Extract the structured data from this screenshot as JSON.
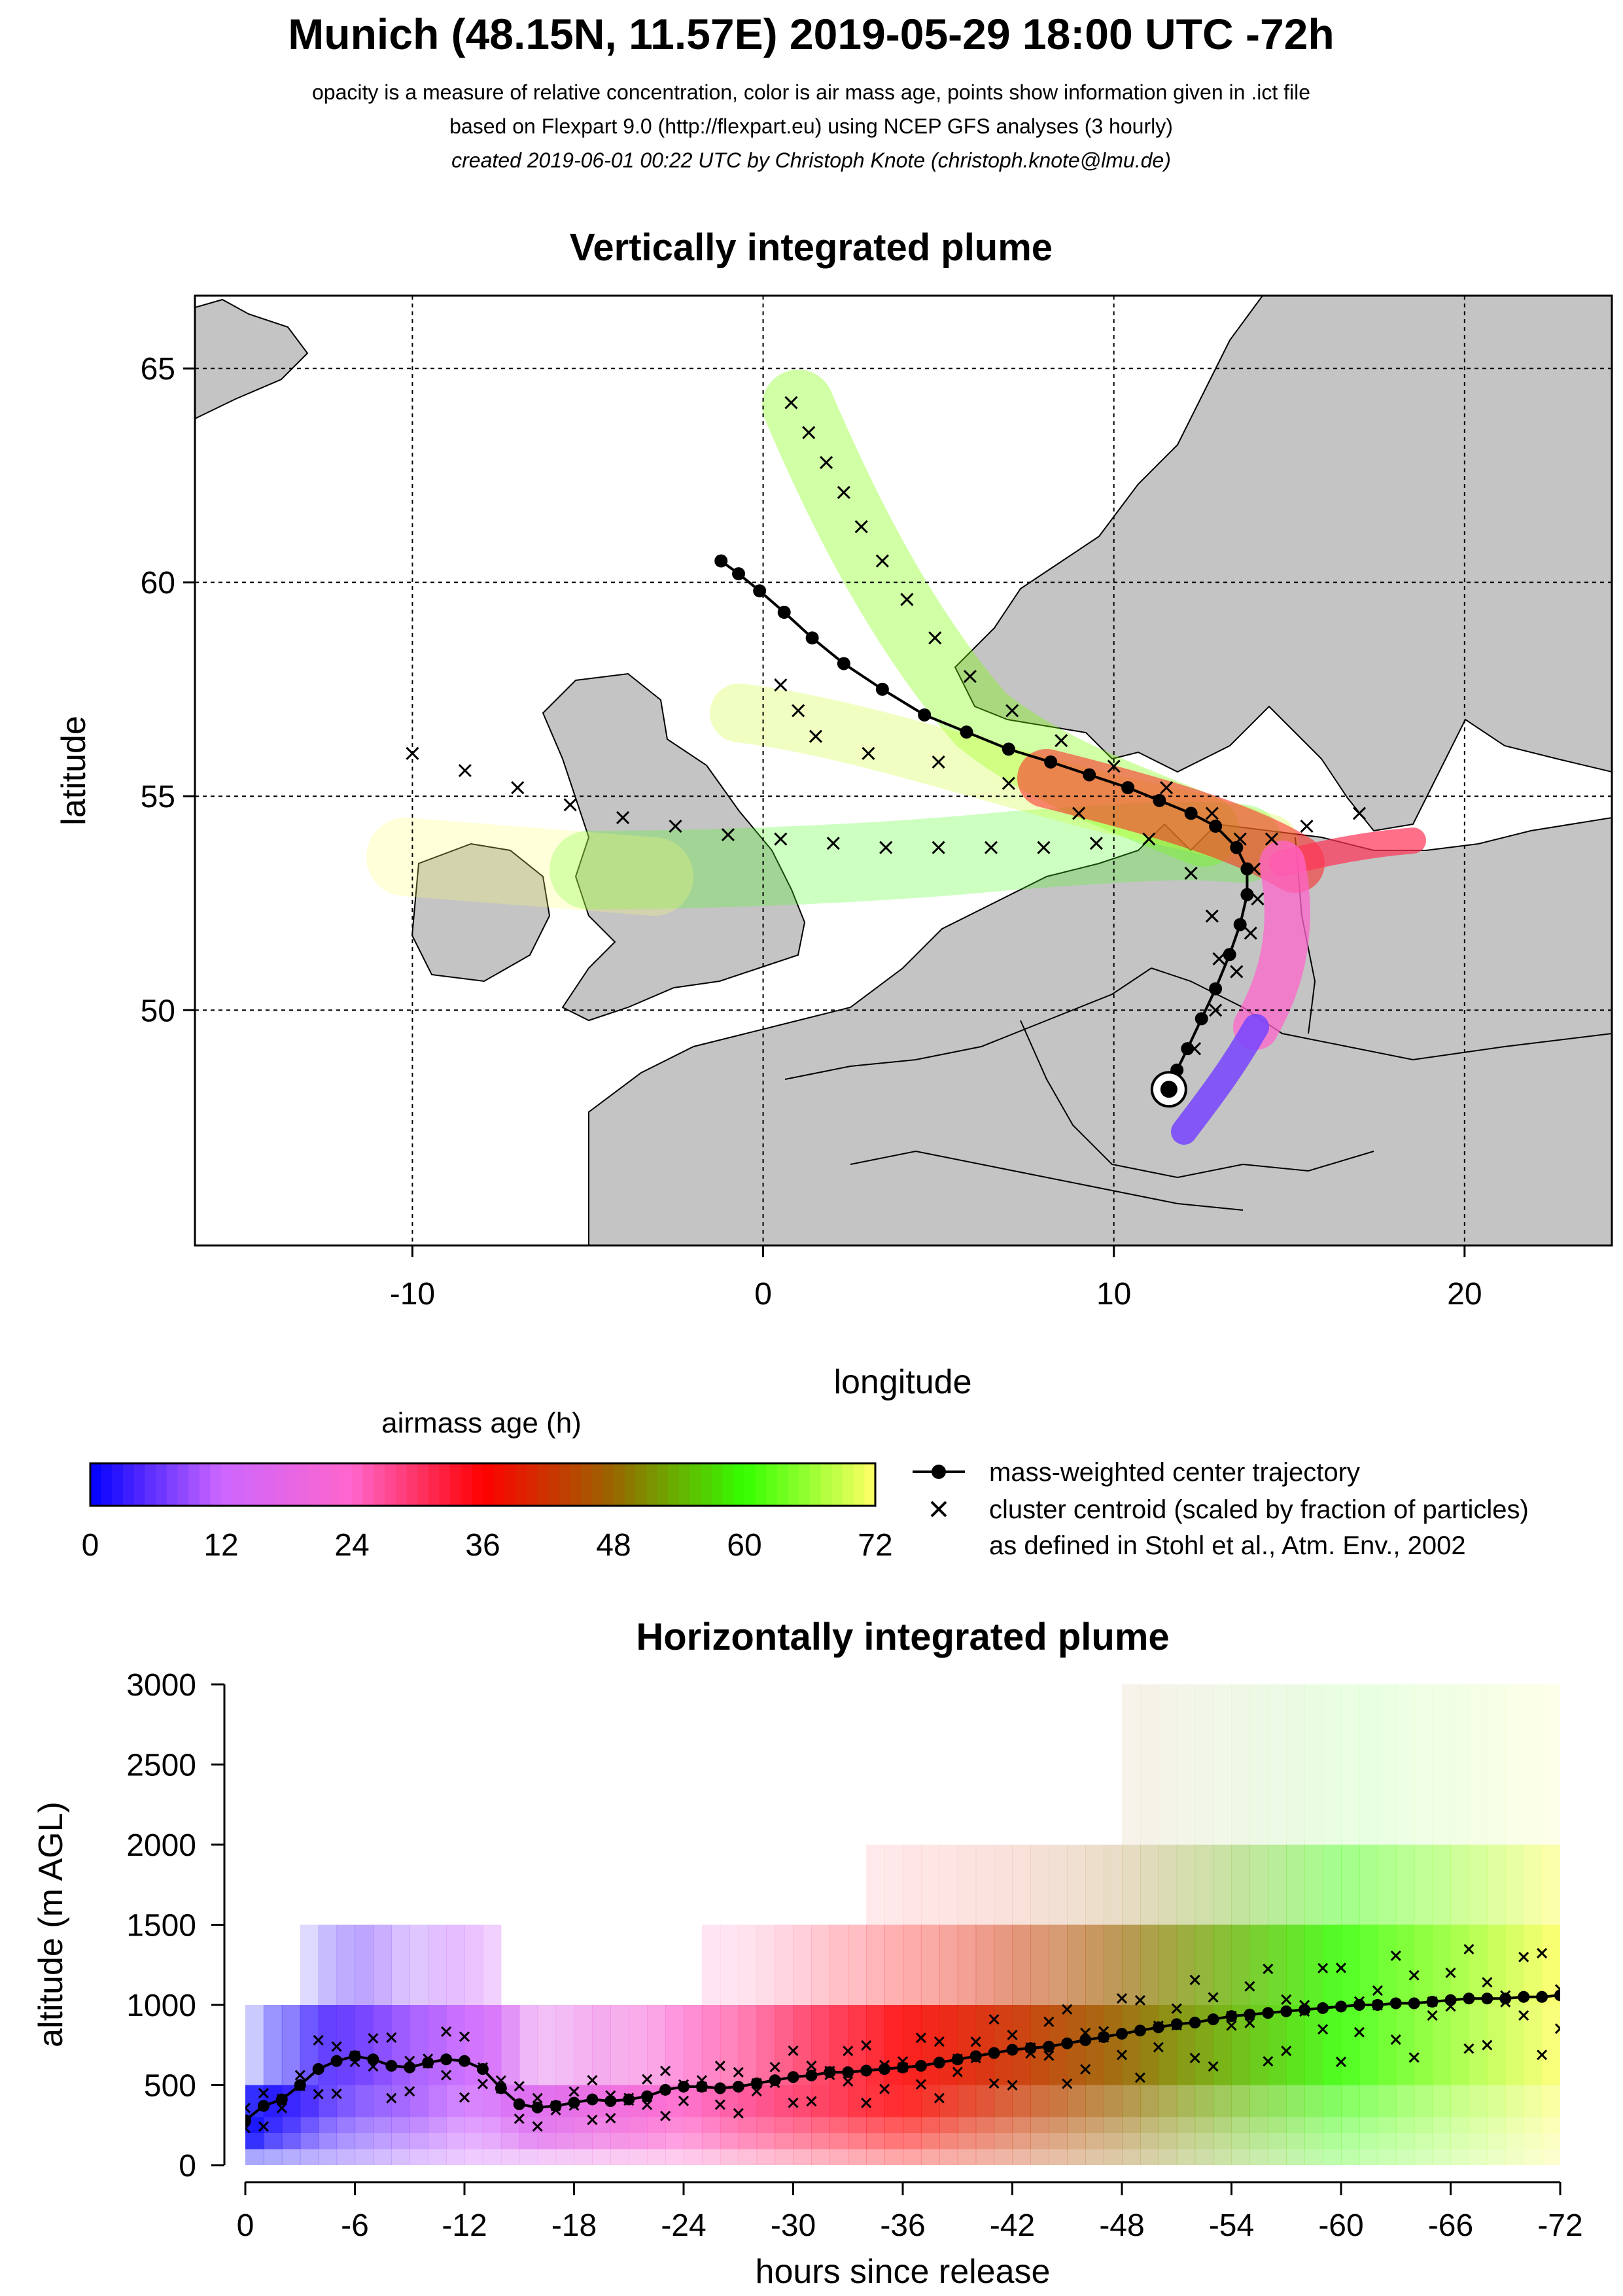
{
  "header": {
    "title": "Munich (48.15N, 11.57E) 2019-05-29 18:00 UTC -72h",
    "line1": "opacity is a measure of relative concentration, color is air mass age, points show information given in .ict file",
    "line2": "based on Flexpart 9.0 (http://flexpart.eu) using NCEP GFS analyses (3 hourly)",
    "line3": "created 2019-06-01 00:22 UTC by Christoph Knote (christoph.knote@lmu.de)"
  },
  "colors": {
    "age_stops": [
      "#0000ff",
      "#cc66ff",
      "#ff66cc",
      "#ff0000",
      "#996600",
      "#33ff00",
      "#ffff66"
    ],
    "land": "#c8c8c8",
    "grid": "#000000"
  },
  "chart_data": [
    {
      "type": "scatter",
      "title": "Vertically integrated plume",
      "xlabel": "longitude",
      "ylabel": "latitude",
      "xlim": [
        -16.2,
        24.2
      ],
      "ylim": [
        44.5,
        66.7
      ],
      "xticks": [
        -10,
        0,
        10,
        20
      ],
      "yticks": [
        50,
        55,
        60,
        65
      ],
      "grid": true,
      "release_point": {
        "lon": 11.57,
        "lat": 48.15
      },
      "series": [
        {
          "name": "mass-weighted center trajectory",
          "marker": "dot-line",
          "points": [
            [
              11.57,
              48.15
            ],
            [
              11.8,
              48.6
            ],
            [
              12.1,
              49.1
            ],
            [
              12.5,
              49.8
            ],
            [
              12.9,
              50.5
            ],
            [
              13.3,
              51.3
            ],
            [
              13.6,
              52.0
            ],
            [
              13.8,
              52.7
            ],
            [
              13.8,
              53.3
            ],
            [
              13.5,
              53.8
            ],
            [
              12.9,
              54.3
            ],
            [
              12.2,
              54.6
            ],
            [
              11.3,
              54.9
            ],
            [
              10.4,
              55.2
            ],
            [
              9.3,
              55.5
            ],
            [
              8.2,
              55.8
            ],
            [
              7.0,
              56.1
            ],
            [
              5.8,
              56.5
            ],
            [
              4.6,
              56.9
            ],
            [
              3.4,
              57.5
            ],
            [
              2.3,
              58.1
            ],
            [
              1.4,
              58.7
            ],
            [
              0.6,
              59.3
            ],
            [
              -0.1,
              59.8
            ],
            [
              -0.7,
              60.2
            ],
            [
              -1.2,
              60.5
            ]
          ]
        },
        {
          "name": "cluster centroid (scaled by fraction of particles)",
          "marker": "x",
          "points": [
            [
              0.8,
              64.2
            ],
            [
              1.3,
              63.5
            ],
            [
              1.8,
              62.8
            ],
            [
              2.3,
              62.1
            ],
            [
              2.8,
              61.3
            ],
            [
              3.4,
              60.5
            ],
            [
              4.1,
              59.6
            ],
            [
              4.9,
              58.7
            ],
            [
              5.9,
              57.8
            ],
            [
              7.1,
              57.0
            ],
            [
              8.5,
              56.3
            ],
            [
              10.0,
              55.7
            ],
            [
              11.5,
              55.2
            ],
            [
              12.8,
              54.6
            ],
            [
              13.6,
              54.0
            ],
            [
              14.0,
              53.3
            ],
            [
              14.1,
              52.6
            ],
            [
              13.9,
              51.8
            ],
            [
              13.5,
              50.9
            ],
            [
              12.9,
              50.0
            ],
            [
              12.3,
              49.1
            ],
            [
              -10.0,
              56.0
            ],
            [
              -8.5,
              55.6
            ],
            [
              -7.0,
              55.2
            ],
            [
              -5.5,
              54.8
            ],
            [
              -4.0,
              54.5
            ],
            [
              -2.5,
              54.3
            ],
            [
              -1.0,
              54.1
            ],
            [
              0.5,
              54.0
            ],
            [
              2.0,
              53.9
            ],
            [
              3.5,
              53.8
            ],
            [
              5.0,
              53.8
            ],
            [
              6.5,
              53.8
            ],
            [
              8.0,
              53.8
            ],
            [
              9.5,
              53.9
            ],
            [
              0.5,
              57.6
            ],
            [
              1.0,
              57.0
            ],
            [
              1.5,
              56.4
            ],
            [
              3.0,
              56.0
            ],
            [
              5.0,
              55.8
            ],
            [
              7.0,
              55.3
            ],
            [
              9.0,
              54.6
            ],
            [
              11.0,
              54.0
            ],
            [
              12.2,
              53.2
            ],
            [
              12.8,
              52.2
            ],
            [
              13.0,
              51.2
            ],
            [
              14.5,
              54.0
            ],
            [
              15.5,
              54.3
            ],
            [
              17.0,
              54.6
            ]
          ]
        }
      ]
    },
    {
      "type": "scatter",
      "title": "Horizontally integrated plume",
      "xlabel": "hours since release",
      "ylabel": "altitude (m AGL)",
      "xlim": [
        0,
        -72
      ],
      "ylim": [
        0,
        3000
      ],
      "xticks": [
        0,
        -6,
        -12,
        -18,
        -24,
        -30,
        -36,
        -42,
        -48,
        -54,
        -60,
        -66,
        -72
      ],
      "yticks": [
        0,
        500,
        1000,
        1500,
        2000,
        2500,
        3000
      ],
      "center_trajectory": {
        "hours": [
          0,
          -1,
          -2,
          -3,
          -4,
          -5,
          -6,
          -7,
          -8,
          -9,
          -10,
          -11,
          -12,
          -13,
          -14,
          -15,
          -16,
          -17,
          -18,
          -19,
          -20,
          -21,
          -22,
          -23,
          -24,
          -25,
          -26,
          -27,
          -28,
          -29,
          -30,
          -31,
          -32,
          -33,
          -34,
          -35,
          -36,
          -37,
          -38,
          -39,
          -40,
          -41,
          -42,
          -43,
          -44,
          -45,
          -46,
          -47,
          -48,
          -49,
          -50,
          -51,
          -52,
          -53,
          -54,
          -55,
          -56,
          -57,
          -58,
          -59,
          -60,
          -61,
          -62,
          -63,
          -64,
          -65,
          -66,
          -67,
          -68,
          -69,
          -70,
          -71,
          -72
        ],
        "altitude": [
          280,
          370,
          410,
          500,
          600,
          650,
          680,
          660,
          620,
          610,
          640,
          660,
          650,
          600,
          480,
          380,
          360,
          370,
          390,
          410,
          400,
          410,
          430,
          470,
          490,
          490,
          480,
          490,
          510,
          530,
          550,
          560,
          580,
          580,
          590,
          600,
          610,
          620,
          640,
          660,
          680,
          700,
          720,
          730,
          740,
          760,
          780,
          800,
          820,
          840,
          860,
          880,
          890,
          910,
          930,
          940,
          950,
          960,
          970,
          980,
          990,
          1000,
          1000,
          1010,
          1010,
          1020,
          1030,
          1040,
          1040,
          1040,
          1050,
          1050,
          1060
        ]
      }
    }
  ],
  "colorbar": {
    "title": "airmass age (h)",
    "ticks": [
      "0",
      "12",
      "24",
      "36",
      "48",
      "60",
      "72"
    ],
    "range": [
      0,
      72
    ]
  },
  "legend": {
    "line_label": "mass-weighted center trajectory",
    "x_label": "cluster centroid (scaled by fraction of particles)",
    "x_label2": "as defined in Stohl et al., Atm. Env., 2002"
  }
}
